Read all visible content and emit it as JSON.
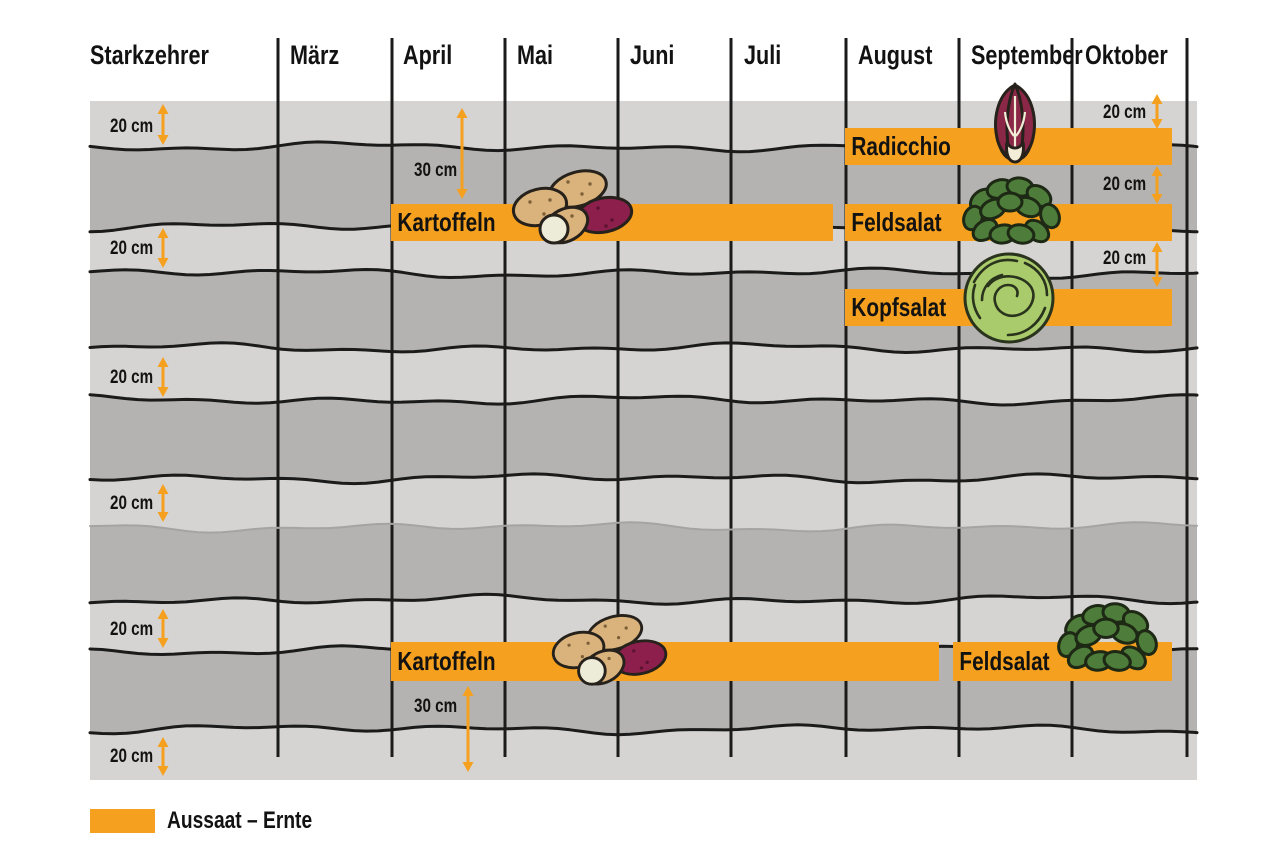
{
  "title": "Starkzehrer",
  "spacing": {
    "cm20": "20 cm",
    "cm30": "30 cm"
  },
  "legend": {
    "label": "Aussaat – Ernte"
  },
  "colors": {
    "accent_orange": "#F5A01E",
    "band_light": "#D5D4D2",
    "band_dark": "#B4B3B1",
    "line_black": "#1B1B1B",
    "faint_line": "#A5A4A2",
    "potato_tan": "#D9B27C",
    "potato_purple": "#8C1F4C",
    "potato_cut_face": "#EDECD8",
    "radicchio_maroon": "#8B2847",
    "radicchio_cream": "#F1EDD6",
    "feldsalat_green": "#4E7C3A",
    "kopfsalat_green": "#A9CB6C",
    "icon_outline": "#26211B"
  },
  "chart_data": {
    "type": "gantt",
    "title": "Starkzehrer",
    "categories": [
      "März",
      "April",
      "Mai",
      "Juni",
      "Juli",
      "August",
      "September",
      "Oktober"
    ],
    "x_axis_note": "months März–Oktober, one column each",
    "legend_label": "Aussaat – Ernte",
    "legend_color": "#F5A01E",
    "bar_color": "#F5A01E",
    "bars": [
      {
        "crop": "Radicchio",
        "soil_row": 1,
        "start_month": 8.0,
        "end_month": 10.85,
        "icon": "radicchio"
      },
      {
        "crop": "Kartoffeln",
        "soil_row": 2,
        "start_month": 4.0,
        "end_month": 7.9,
        "icon": "potatoes"
      },
      {
        "crop": "Feldsalat",
        "soil_row": 2,
        "start_month": 8.0,
        "end_month": 10.85,
        "icon": "lamb-lettuce"
      },
      {
        "crop": "Kopfsalat",
        "soil_row": 3,
        "start_month": 8.0,
        "end_month": 10.85,
        "icon": "head-lettuce"
      },
      {
        "crop": "Kartoffeln",
        "soil_row": 7,
        "start_month": 4.0,
        "end_month": 8.8,
        "icon": "potatoes"
      },
      {
        "crop": "Feldsalat",
        "soil_row": 7,
        "start_month": 9.0,
        "end_month": 10.85,
        "icon": "lamb-lettuce"
      }
    ],
    "spacing_annotations": {
      "left_column": [
        "20 cm",
        "20 cm",
        "20 cm",
        "20 cm",
        "20 cm",
        "20 cm"
      ],
      "right_column": [
        "20 cm",
        "20 cm",
        "20 cm"
      ],
      "inner": [
        "30 cm",
        "30 cm"
      ]
    },
    "layout_hints": {
      "background": "alternating light/dark soil bands separated by hand-drawn wavy lines",
      "grid": "vertical month separator lines",
      "legend_position": "bottom-left"
    }
  }
}
